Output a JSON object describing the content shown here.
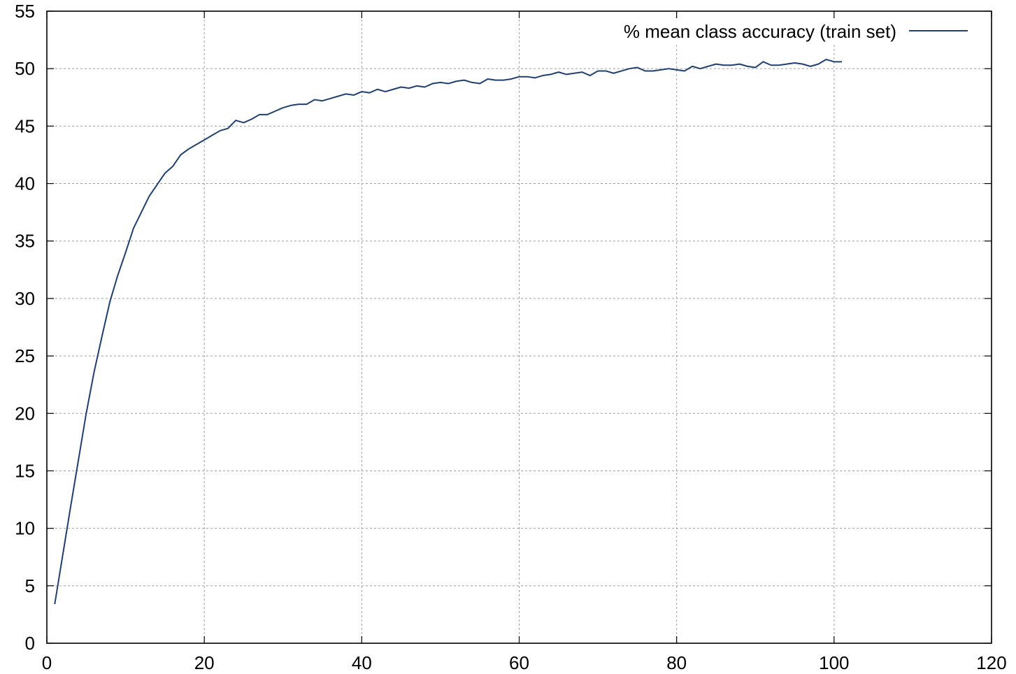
{
  "chart_data": {
    "type": "line",
    "title": "",
    "xlabel": "",
    "ylabel": "",
    "xlim": [
      0,
      120
    ],
    "ylim": [
      0,
      55
    ],
    "xticks": [
      0,
      20,
      40,
      60,
      80,
      100,
      120
    ],
    "yticks": [
      0,
      5,
      10,
      15,
      20,
      25,
      30,
      35,
      40,
      45,
      50,
      55
    ],
    "grid": true,
    "legend_position": "top-right",
    "series": [
      {
        "name": "% mean class accuracy (train set)",
        "color": "#1f3f73",
        "x": [
          1,
          2,
          3,
          4,
          5,
          6,
          7,
          8,
          9,
          10,
          11,
          12,
          13,
          14,
          15,
          16,
          17,
          18,
          19,
          20,
          21,
          22,
          23,
          24,
          25,
          26,
          27,
          28,
          29,
          30,
          31,
          32,
          33,
          34,
          35,
          36,
          37,
          38,
          39,
          40,
          41,
          42,
          43,
          44,
          45,
          46,
          47,
          48,
          49,
          50,
          51,
          52,
          53,
          54,
          55,
          56,
          57,
          58,
          59,
          60,
          61,
          62,
          63,
          64,
          65,
          66,
          67,
          68,
          69,
          70,
          71,
          72,
          73,
          74,
          75,
          76,
          77,
          78,
          79,
          80,
          81,
          82,
          83,
          84,
          85,
          86,
          87,
          88,
          89,
          90,
          91,
          92,
          93,
          94,
          95,
          96,
          97,
          98,
          99,
          100,
          101
        ],
        "values": [
          3.4,
          7.6,
          11.8,
          15.9,
          20.0,
          23.6,
          26.7,
          29.7,
          32.0,
          34.0,
          36.1,
          37.5,
          38.9,
          39.9,
          40.9,
          41.5,
          42.5,
          43.0,
          43.4,
          43.8,
          44.2,
          44.6,
          44.8,
          45.5,
          45.3,
          45.6,
          46.0,
          46.0,
          46.3,
          46.6,
          46.8,
          46.9,
          46.9,
          47.3,
          47.2,
          47.4,
          47.6,
          47.8,
          47.7,
          48.0,
          47.9,
          48.2,
          48.0,
          48.2,
          48.4,
          48.3,
          48.5,
          48.4,
          48.7,
          48.8,
          48.7,
          48.9,
          49.0,
          48.8,
          48.7,
          49.1,
          49.0,
          49.0,
          49.1,
          49.3,
          49.3,
          49.2,
          49.4,
          49.5,
          49.7,
          49.5,
          49.6,
          49.7,
          49.4,
          49.8,
          49.8,
          49.6,
          49.8,
          50.0,
          50.1,
          49.8,
          49.8,
          49.9,
          50.0,
          49.9,
          49.8,
          50.2,
          50.0,
          50.2,
          50.4,
          50.3,
          50.3,
          50.4,
          50.2,
          50.1,
          50.6,
          50.3,
          50.3,
          50.4,
          50.5,
          50.4,
          50.2,
          50.4,
          50.8,
          50.6,
          50.6
        ]
      }
    ]
  }
}
